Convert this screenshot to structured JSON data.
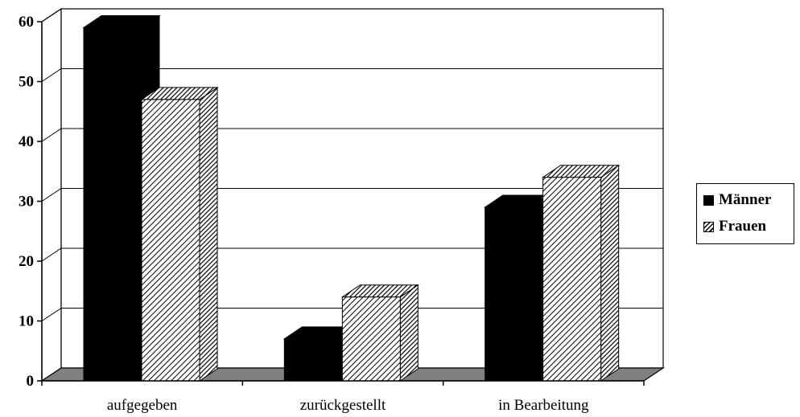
{
  "chart_data": {
    "type": "bar",
    "categories": [
      "aufgegeben",
      "zurückgestellt",
      "in Bearbeitung"
    ],
    "series": [
      {
        "name": "Männer",
        "values": [
          59,
          7,
          29
        ],
        "color": "#000000",
        "pattern": "solid"
      },
      {
        "name": "Frauen",
        "values": [
          47,
          14,
          34
        ],
        "color": "#000000",
        "pattern": "hatched"
      }
    ],
    "yticks": [
      "0",
      "10",
      "20",
      "30",
      "40",
      "50",
      "60"
    ],
    "ylim": [
      0,
      60
    ],
    "grid": true,
    "legend_position": "right",
    "style": "3d"
  },
  "legend": {
    "items": [
      {
        "label": "Männer"
      },
      {
        "label": "Frauen"
      }
    ]
  }
}
